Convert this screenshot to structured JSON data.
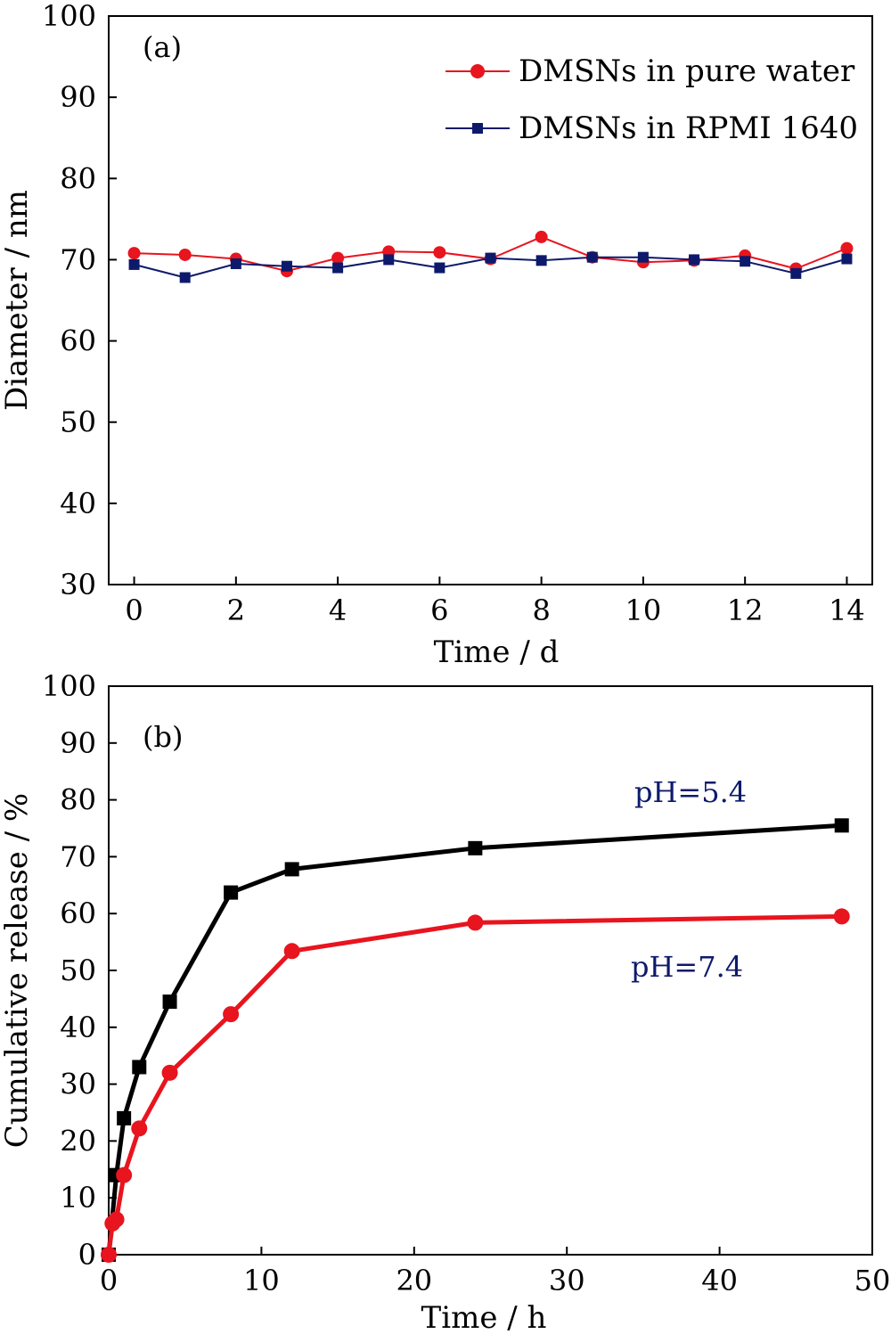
{
  "chart_data": [
    {
      "type": "line",
      "panel_label": "(a)",
      "xlabel": "Time / d",
      "ylabel": "Diameter / nm",
      "xlim": [
        -0.5,
        14.5
      ],
      "ylim": [
        30,
        100
      ],
      "xticks": [
        0,
        2,
        4,
        6,
        8,
        10,
        12,
        14
      ],
      "yticks": [
        30,
        40,
        50,
        60,
        70,
        80,
        90,
        100
      ],
      "legend_position": "top-right",
      "series": [
        {
          "name": "DMSNs in pure water",
          "color": "#e8141e",
          "marker": "circle",
          "x": [
            0,
            1,
            2,
            3,
            4,
            5,
            6,
            7,
            8,
            9,
            10,
            11,
            12,
            13,
            14
          ],
          "y": [
            70.8,
            70.6,
            70.1,
            68.6,
            70.2,
            71.0,
            70.9,
            70.1,
            72.8,
            70.3,
            69.7,
            69.9,
            70.5,
            68.9,
            71.4
          ]
        },
        {
          "name": "DMSNs in RPMI 1640",
          "color": "#0d1a6b",
          "marker": "square",
          "x": [
            0,
            1,
            2,
            3,
            4,
            5,
            6,
            7,
            8,
            9,
            10,
            11,
            12,
            13,
            14
          ],
          "y": [
            69.4,
            67.8,
            69.5,
            69.2,
            69.0,
            70.0,
            69.0,
            70.2,
            69.9,
            70.3,
            70.3,
            70.0,
            69.8,
            68.3,
            70.1
          ]
        }
      ]
    },
    {
      "type": "line",
      "panel_label": "(b)",
      "xlabel": "Time / h",
      "ylabel": "Cumulative release / %",
      "xlim": [
        0,
        50
      ],
      "ylim": [
        0,
        100
      ],
      "xticks": [
        0,
        10,
        20,
        30,
        40,
        50
      ],
      "yticks": [
        0,
        10,
        20,
        30,
        40,
        50,
        60,
        70,
        80,
        90,
        100
      ],
      "annotations": [
        {
          "text": "pH=5.4",
          "color": "#0d1a6b"
        },
        {
          "text": "pH=7.4",
          "color": "#0d1a6b"
        }
      ],
      "series": [
        {
          "label": "pH=5.4",
          "color": "#000000",
          "marker": "square",
          "x": [
            0,
            0.5,
            1,
            2,
            4,
            8,
            12,
            24,
            48
          ],
          "y": [
            0,
            14,
            24,
            33,
            44.5,
            63.7,
            67.8,
            71.5,
            75.5
          ]
        },
        {
          "label": "pH=7.4",
          "color": "#e8141e",
          "marker": "circle",
          "x": [
            0,
            0.25,
            0.5,
            1,
            2,
            4,
            8,
            12,
            24,
            48
          ],
          "y": [
            0,
            5.5,
            6.2,
            14,
            22.2,
            32,
            42.3,
            53.4,
            58.4,
            59.5
          ]
        }
      ]
    }
  ]
}
